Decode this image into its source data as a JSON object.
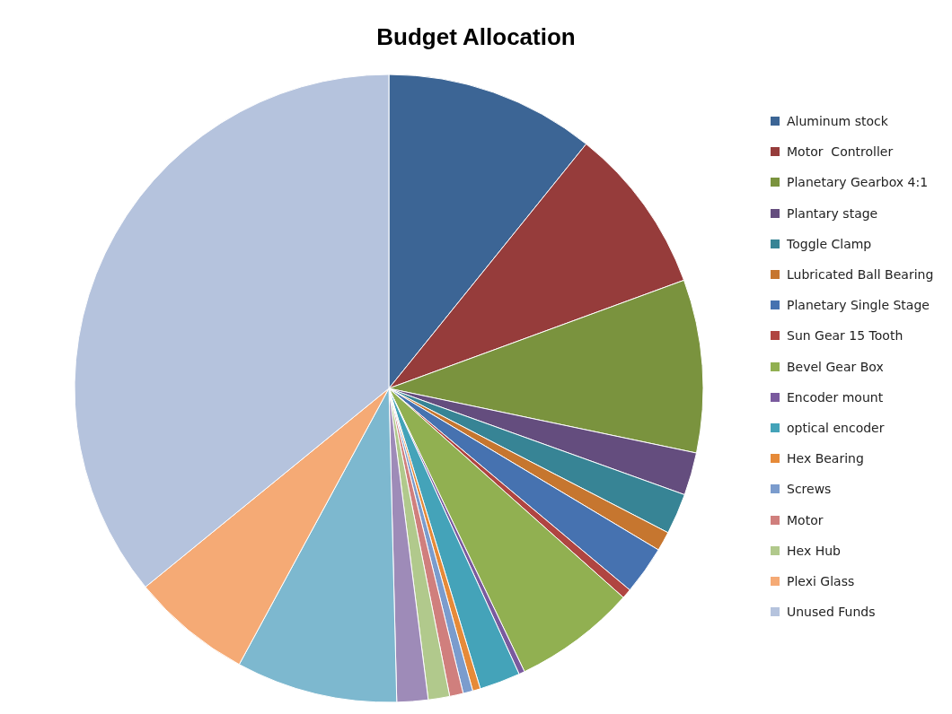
{
  "chart_data": {
    "type": "pie",
    "title": "Budget Allocation",
    "categories": [
      "Aluminum stock",
      "Motor  Controller",
      "Planetary Gearbox 4:1",
      "Plantary stage",
      "Toggle Clamp",
      "Lubricated Ball Bearing",
      "Planetary Single Stage",
      "Sun Gear 15 Tooth",
      "Bevel Gear Box",
      "Encoder mount",
      "optical encoder",
      "Hex Bearing",
      "Screws",
      "Motor",
      "Hex Hub",
      null,
      null,
      "Plexi Glass",
      "Unused Funds"
    ],
    "values": [
      10.8,
      8.6,
      8.9,
      2.2,
      2.1,
      1.0,
      2.5,
      0.5,
      6.3,
      0.3,
      2.1,
      0.4,
      0.5,
      0.7,
      1.1,
      1.6,
      8.3,
      6.2,
      35.9
    ],
    "colors": [
      "#3c6595",
      "#963c3b",
      "#7a933e",
      "#644d7e",
      "#378495",
      "#c6762f",
      "#4672b0",
      "#b04541",
      "#91b051",
      "#7a5a9e",
      "#44a3b9",
      "#e68a38",
      "#7b9ccd",
      "#d07f7d",
      "#b1c98c",
      "#9e8bb8",
      "#7db8cf",
      "#f5aa75",
      "#b5c3dd"
    ],
    "legend": "right"
  }
}
